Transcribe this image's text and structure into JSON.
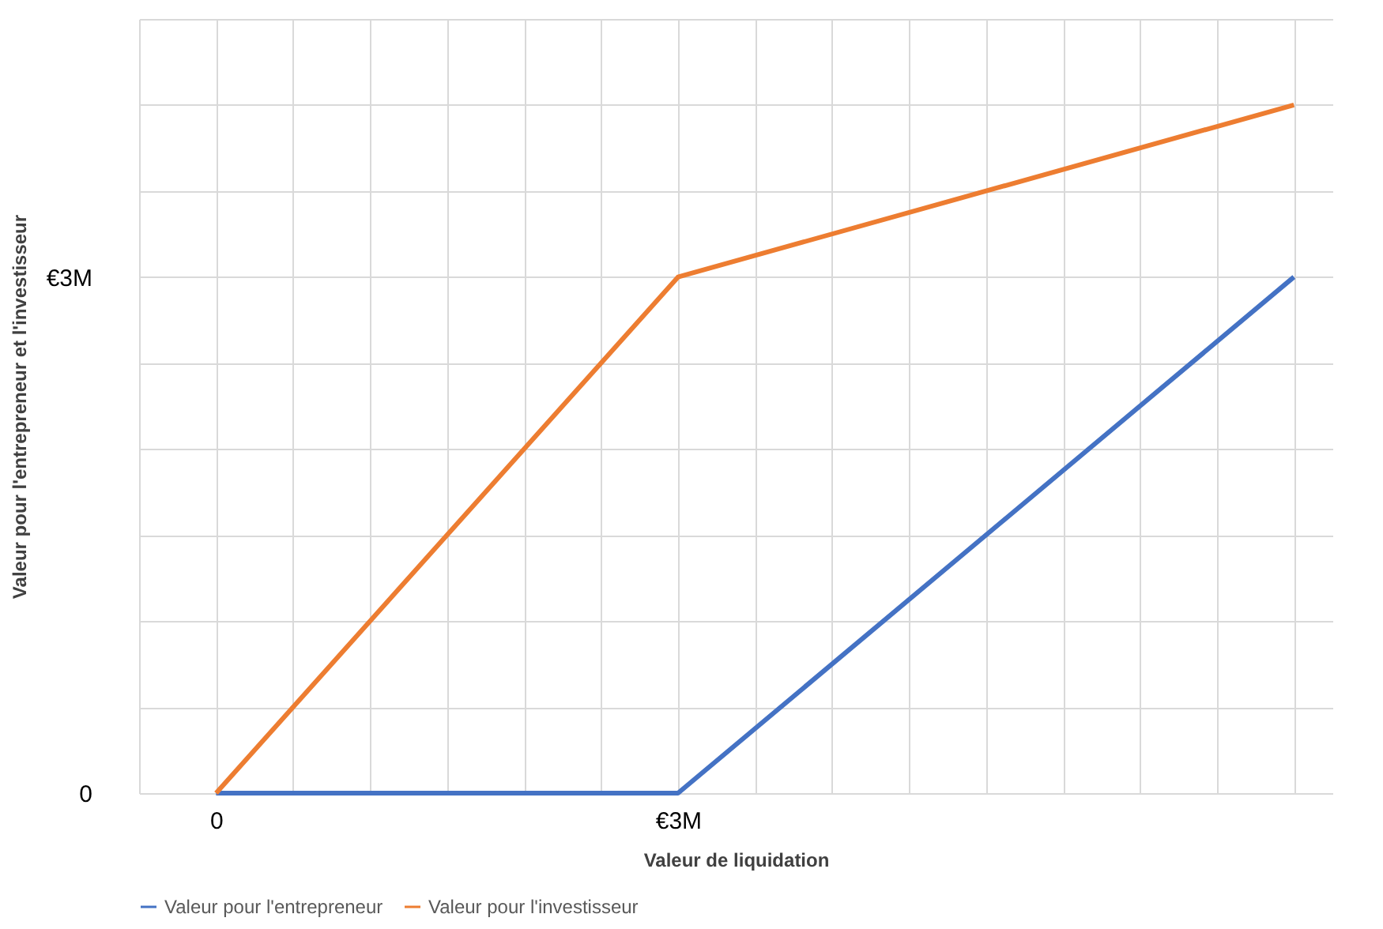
{
  "chart_data": {
    "type": "line",
    "xlabel": "Valeur de liquidation",
    "ylabel": "Valeur pour l'entrepreneur et l'investisseur",
    "x": [
      0,
      3,
      7
    ],
    "series": [
      {
        "name": "Valeur pour l'entrepreneur",
        "color": "#4472c4",
        "values": [
          0,
          0,
          3
        ]
      },
      {
        "name": "Valeur pour l'investisseur",
        "color": "#ed7d31",
        "values": [
          0,
          3,
          4
        ]
      }
    ],
    "xlim": [
      -0.5,
      7.25
    ],
    "xticks": [
      {
        "value": -0.5,
        "label": null
      },
      0,
      {
        "value": 0.5,
        "label": null
      },
      {
        "value": 1,
        "label": null
      },
      {
        "value": 1.5,
        "label": null
      },
      {
        "value": 2,
        "label": null
      },
      {
        "value": 2.5,
        "label": null
      },
      {
        "value": 3,
        "label": "€3M"
      },
      {
        "value": 3.5,
        "label": null
      },
      {
        "value": 4,
        "label": null
      },
      {
        "value": 4.5,
        "label": null
      },
      {
        "value": 5,
        "label": null
      },
      {
        "value": 5.5,
        "label": null
      },
      {
        "value": 6,
        "label": null
      },
      {
        "value": 6.5,
        "label": null
      },
      {
        "value": 7,
        "label": null
      }
    ],
    "ylim": [
      0,
      4.5
    ],
    "yticks": [
      0,
      {
        "value": 0.5,
        "label": null
      },
      {
        "value": 1,
        "label": null
      },
      {
        "value": 1.5,
        "label": null
      },
      {
        "value": 2,
        "label": null
      },
      {
        "value": 2.5,
        "label": null
      },
      {
        "value": 3,
        "label": "€3M"
      },
      {
        "value": 3.5,
        "label": null
      },
      {
        "value": 4,
        "label": null
      },
      {
        "value": 4.5,
        "label": null
      }
    ],
    "grid": true,
    "legend": "bottom",
    "marker": "none",
    "line_style": "solid"
  }
}
